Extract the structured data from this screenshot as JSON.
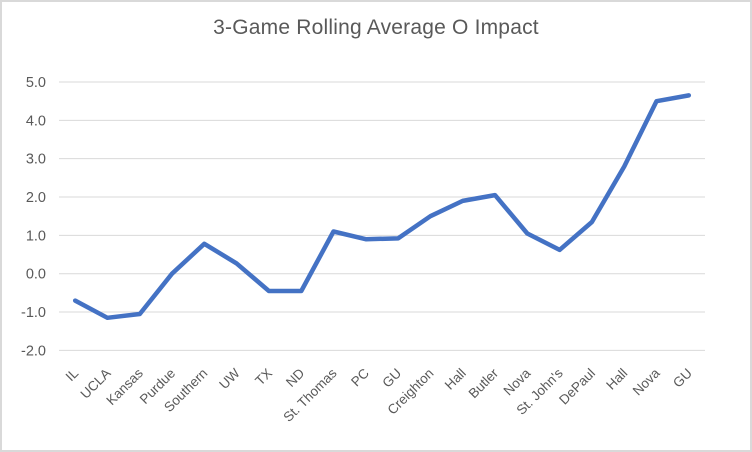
{
  "window": {
    "background": "#ffffff",
    "border_color": "#d9d9d9"
  },
  "chart_data": {
    "type": "line",
    "title": "3-Game Rolling Average O Impact",
    "categories": [
      "IL",
      "UCLA",
      "Kansas",
      "Purdue",
      "Southern",
      "UW",
      "TX",
      "ND",
      "St. Thomas",
      "PC",
      "GU",
      "Creighton",
      "Hall",
      "Butler",
      "Nova",
      "St. John's",
      "DePaul",
      "Hall",
      "Nova",
      "GU"
    ],
    "series": [
      {
        "name": "3-Game Rolling Average O Impact",
        "values": [
          -0.7,
          -1.15,
          -1.05,
          0.0,
          0.78,
          0.27,
          -0.45,
          -0.45,
          1.1,
          0.9,
          0.92,
          1.5,
          1.9,
          2.05,
          1.05,
          0.62,
          1.35,
          2.8,
          4.5,
          4.65
        ]
      }
    ],
    "xlabel": "",
    "ylabel": "",
    "ylim": [
      -2.0,
      5.0
    ],
    "ytick_step": 1.0,
    "ytick_labels": [
      "5.0",
      "4.0",
      "3.0",
      "2.0",
      "1.0",
      "0.0",
      "-1.0",
      "-2.0"
    ],
    "ytick_values": [
      5.0,
      4.0,
      3.0,
      2.0,
      1.0,
      0.0,
      -1.0,
      -2.0
    ],
    "grid": true,
    "legend_position": "none",
    "x_label_rotation_deg": -45,
    "line_color": "#4472C4",
    "gridline_color": "#D9D9D9",
    "text_color": "#595959",
    "title_color": "#595959"
  }
}
